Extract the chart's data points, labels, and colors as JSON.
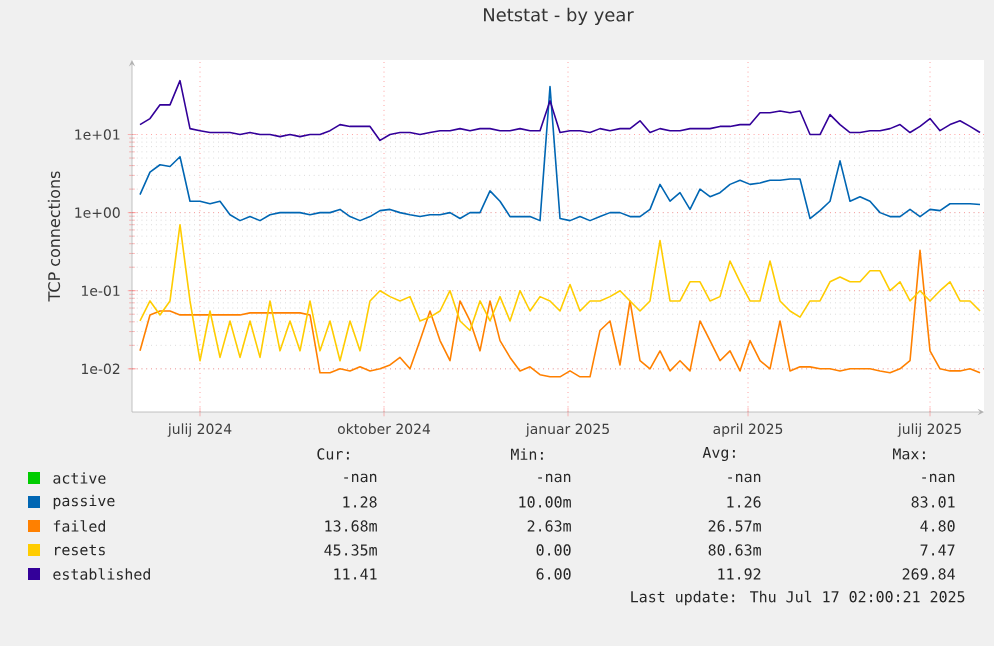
{
  "chart_data": {
    "type": "line",
    "title": "Netstat - by year",
    "ylabel": "TCP connections",
    "log": true,
    "grid": true,
    "legend": "bottom",
    "xlim": [
      "2024-05-28",
      "2025-07-28"
    ],
    "ylim": [
      0.0028,
      90
    ],
    "xticks": [
      {
        "value": "2024-07-01",
        "label": "julij 2024"
      },
      {
        "value": "2024-10-01",
        "label": "oktober 2024"
      },
      {
        "value": "2025-01-01",
        "label": "januar 2025"
      },
      {
        "value": "2025-04-01",
        "label": "april 2025"
      },
      {
        "value": "2025-07-01",
        "label": "julij 2025"
      }
    ],
    "yticks": [
      {
        "value": 0.01,
        "label": "1e-02"
      },
      {
        "value": 0.1,
        "label": "1e-01"
      },
      {
        "value": 1,
        "label": "1e+00"
      },
      {
        "value": 10,
        "label": "1e+01"
      }
    ],
    "x": [
      "2024-06-01",
      "2024-06-06",
      "2024-06-11",
      "2024-06-16",
      "2024-06-21",
      "2024-06-26",
      "2024-07-01",
      "2024-07-06",
      "2024-07-11",
      "2024-07-16",
      "2024-07-21",
      "2024-07-26",
      "2024-07-31",
      "2024-08-05",
      "2024-08-10",
      "2024-08-15",
      "2024-08-20",
      "2024-08-25",
      "2024-08-30",
      "2024-09-04",
      "2024-09-09",
      "2024-09-14",
      "2024-09-19",
      "2024-09-24",
      "2024-09-29",
      "2024-10-04",
      "2024-10-09",
      "2024-10-14",
      "2024-10-19",
      "2024-10-24",
      "2024-10-29",
      "2024-11-03",
      "2024-11-08",
      "2024-11-13",
      "2024-11-18",
      "2024-11-23",
      "2024-11-28",
      "2024-12-03",
      "2024-12-08",
      "2024-12-13",
      "2024-12-18",
      "2024-12-23",
      "2024-12-28",
      "2025-01-02",
      "2025-01-07",
      "2025-01-12",
      "2025-01-17",
      "2025-01-22",
      "2025-01-27",
      "2025-02-01",
      "2025-02-06",
      "2025-02-11",
      "2025-02-16",
      "2025-02-21",
      "2025-02-26",
      "2025-03-03",
      "2025-03-08",
      "2025-03-13",
      "2025-03-18",
      "2025-03-23",
      "2025-03-28",
      "2025-04-02",
      "2025-04-07",
      "2025-04-12",
      "2025-04-17",
      "2025-04-22",
      "2025-04-27",
      "2025-05-02",
      "2025-05-07",
      "2025-05-12",
      "2025-05-17",
      "2025-05-22",
      "2025-05-27",
      "2025-06-01",
      "2025-06-06",
      "2025-06-11",
      "2025-06-16",
      "2025-06-21",
      "2025-06-26",
      "2025-07-01",
      "2025-07-06",
      "2025-07-11",
      "2025-07-16",
      "2025-07-21",
      "2025-07-26"
    ],
    "series": [
      {
        "name": "active",
        "color": "#00cc00",
        "values": [
          null,
          null,
          null,
          null,
          null,
          null,
          null,
          null,
          null,
          null,
          null,
          null,
          null,
          null,
          null,
          null,
          null,
          null,
          null,
          null,
          null,
          null,
          null,
          null,
          null,
          null,
          null,
          null,
          null,
          null,
          null,
          null,
          null,
          null,
          null,
          null,
          null,
          null,
          null,
          null,
          null,
          null,
          null,
          null,
          null,
          null,
          null,
          null,
          null,
          null,
          null,
          null,
          null,
          null,
          null,
          null,
          null,
          null,
          null,
          null,
          null,
          null,
          null,
          null,
          null,
          null,
          null,
          null,
          null,
          null,
          null,
          null,
          null,
          null,
          null,
          null,
          null,
          null,
          null,
          null,
          null,
          null,
          null,
          null,
          null
        ]
      },
      {
        "name": "passive",
        "color": "#0066b3",
        "values": [
          1.7,
          3.3,
          4.1,
          3.9,
          5.2,
          1.4,
          1.4,
          1.3,
          1.4,
          0.94,
          0.79,
          0.89,
          0.79,
          0.94,
          1.0,
          1.0,
          1.0,
          0.94,
          1.0,
          1.0,
          1.1,
          0.89,
          0.79,
          0.89,
          1.06,
          1.1,
          1.0,
          0.94,
          0.89,
          0.94,
          0.94,
          1.0,
          0.84,
          1.0,
          1.0,
          1.9,
          1.4,
          0.89,
          0.89,
          0.89,
          0.79,
          41,
          0.84,
          0.79,
          0.89,
          0.79,
          0.89,
          1.0,
          1.0,
          0.89,
          0.89,
          1.1,
          2.3,
          1.4,
          1.8,
          1.1,
          2.0,
          1.6,
          1.8,
          2.3,
          2.6,
          2.3,
          2.4,
          2.6,
          2.6,
          2.7,
          2.7,
          0.84,
          1.06,
          1.4,
          4.6,
          1.4,
          1.6,
          1.4,
          1.0,
          0.89,
          0.89,
          1.1,
          0.89,
          1.1,
          1.06,
          1.3,
          1.3,
          1.3,
          1.27
        ]
      },
      {
        "name": "failed",
        "color": "#ff8000",
        "values": [
          0.017,
          0.049,
          0.055,
          0.055,
          0.049,
          0.049,
          0.049,
          0.049,
          0.049,
          0.049,
          0.049,
          0.052,
          0.052,
          0.052,
          0.052,
          0.052,
          0.052,
          0.049,
          0.0089,
          0.0089,
          0.01,
          0.0094,
          0.0106,
          0.0094,
          0.01,
          0.0112,
          0.014,
          0.01,
          0.023,
          0.055,
          0.023,
          0.0127,
          0.074,
          0.041,
          0.017,
          0.074,
          0.023,
          0.014,
          0.0094,
          0.0106,
          0.0084,
          0.0079,
          0.0079,
          0.0094,
          0.0079,
          0.0079,
          0.031,
          0.041,
          0.0112,
          0.074,
          0.0127,
          0.01,
          0.017,
          0.0094,
          0.0127,
          0.0094,
          0.041,
          0.023,
          0.0127,
          0.017,
          0.0094,
          0.023,
          0.0127,
          0.01,
          0.041,
          0.0094,
          0.0106,
          0.0106,
          0.01,
          0.01,
          0.0094,
          0.01,
          0.01,
          0.01,
          0.0094,
          0.0089,
          0.01,
          0.0127,
          0.33,
          0.017,
          0.01,
          0.0094,
          0.0094,
          0.01,
          0.0089
        ]
      },
      {
        "name": "resets",
        "color": "#ffcc00",
        "values": [
          0.041,
          0.074,
          0.049,
          0.074,
          0.7,
          0.074,
          0.0127,
          0.055,
          0.014,
          0.041,
          0.014,
          0.041,
          0.014,
          0.074,
          0.017,
          0.041,
          0.017,
          0.074,
          0.017,
          0.041,
          0.0127,
          0.041,
          0.017,
          0.074,
          0.1,
          0.084,
          0.074,
          0.084,
          0.041,
          0.046,
          0.055,
          0.1,
          0.041,
          0.031,
          0.074,
          0.041,
          0.084,
          0.041,
          0.1,
          0.055,
          0.084,
          0.074,
          0.055,
          0.12,
          0.055,
          0.074,
          0.074,
          0.084,
          0.1,
          0.074,
          0.055,
          0.074,
          0.44,
          0.074,
          0.074,
          0.13,
          0.13,
          0.074,
          0.084,
          0.24,
          0.13,
          0.074,
          0.074,
          0.24,
          0.074,
          0.055,
          0.046,
          0.074,
          0.074,
          0.13,
          0.15,
          0.13,
          0.13,
          0.18,
          0.18,
          0.1,
          0.13,
          0.074,
          0.1,
          0.074,
          0.1,
          0.13,
          0.074,
          0.074,
          0.055
        ]
      },
      {
        "name": "established",
        "color": "#330099",
        "values": [
          13.4,
          16,
          24,
          24,
          49,
          11.9,
          11.2,
          10.6,
          10.6,
          10.6,
          10,
          10.6,
          10,
          10,
          9.4,
          10,
          9.4,
          10,
          10,
          11.2,
          13.4,
          12.7,
          12.7,
          12.7,
          8.4,
          10,
          10.6,
          10.6,
          10,
          10.6,
          11.2,
          11.2,
          11.9,
          11.2,
          11.9,
          11.9,
          11.2,
          11.2,
          11.9,
          11.2,
          11.2,
          27,
          10.6,
          11.2,
          11.2,
          10.6,
          11.9,
          11.2,
          11.9,
          11.9,
          15,
          10.6,
          11.9,
          11.2,
          11.2,
          11.9,
          11.9,
          11.9,
          12.7,
          12.7,
          13.4,
          13.4,
          19,
          19,
          20,
          19,
          20,
          10,
          10,
          18,
          13.4,
          10.6,
          10.6,
          11.2,
          11.2,
          11.9,
          13.4,
          10.6,
          12.7,
          16,
          11.2,
          13.4,
          15,
          12.7,
          10.6
        ]
      }
    ],
    "annotations": [
      "Cur:",
      "Min:",
      "Avg:",
      "Max:",
      "-nan",
      "-nan",
      "-nan",
      "-nan",
      "1.28",
      "10.00m",
      "1.26",
      "83.01",
      "13.68m",
      "2.63m",
      "26.57m",
      "4.80",
      "45.35m",
      "0.00",
      "80.63m",
      "7.47",
      "11.41",
      "6.00",
      "11.92",
      "269.84",
      "Last update: Thu Jul 17 02:00:21 2025"
    ]
  }
}
